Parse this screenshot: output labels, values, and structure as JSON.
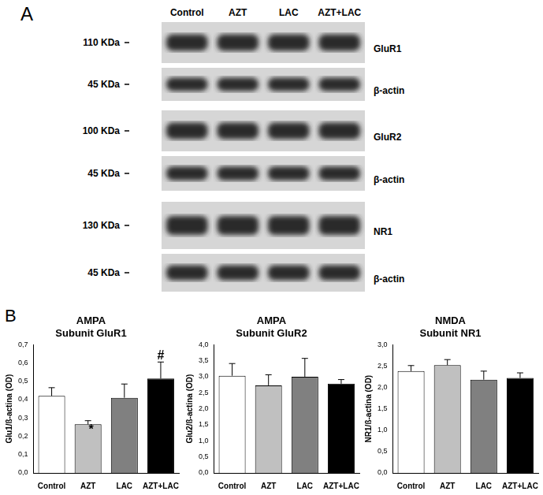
{
  "panel_a": {
    "label": "A",
    "lanes": [
      "Control",
      "AZT",
      "LAC",
      "AZT+LAC"
    ],
    "blots": [
      {
        "mw": "110 KDa",
        "protein": "GluR1"
      },
      {
        "mw": "45 KDa",
        "protein": "β-actin"
      },
      {
        "mw": "100 KDa",
        "protein": "GluR2"
      },
      {
        "mw": "45 KDa",
        "protein": "β-actin"
      },
      {
        "mw": "130 KDa",
        "protein": "NR1"
      },
      {
        "mw": "45 KDa",
        "protein": "β-actin"
      }
    ]
  },
  "panel_b_label": "B",
  "chart_data": [
    {
      "type": "bar",
      "title": [
        "AMPA",
        "Subunit GluR1"
      ],
      "y_label": "Glu1/ß-actina (OD)",
      "categories": [
        "Control",
        "AZT",
        "LAC",
        "AZT+LAC"
      ],
      "values": [
        0.42,
        0.265,
        0.41,
        0.515
      ],
      "errors": [
        0.045,
        0.02,
        0.075,
        0.09
      ],
      "colors": [
        "#ffffff",
        "#c0c0c0",
        "#808080",
        "#000000"
      ],
      "annotations": [
        {
          "category": "AZT",
          "text": "*"
        },
        {
          "category": "AZT+LAC",
          "text": "#"
        }
      ],
      "ylim": [
        0,
        0.7
      ],
      "yticks": [
        {
          "value": 0,
          "label": "0,0"
        },
        {
          "value": 0.1,
          "label": "0,1"
        },
        {
          "value": 0.2,
          "label": "0,2"
        },
        {
          "value": 0.3,
          "label": "0,3"
        },
        {
          "value": 0.4,
          "label": "0,4"
        },
        {
          "value": 0.5,
          "label": "0,5"
        },
        {
          "value": 0.6,
          "label": "0,6"
        },
        {
          "value": 0.7,
          "label": "0,7"
        }
      ],
      "grid": false
    },
    {
      "type": "bar",
      "title": [
        "AMPA",
        "Subunit GluR2"
      ],
      "y_label": "Glu2/ß-actina (OD)",
      "categories": [
        "Control",
        "AZT",
        "LAC",
        "AZT+LAC"
      ],
      "values": [
        3.03,
        2.73,
        3.0,
        2.78
      ],
      "errors": [
        0.38,
        0.33,
        0.57,
        0.13
      ],
      "colors": [
        "#ffffff",
        "#c0c0c0",
        "#808080",
        "#000000"
      ],
      "ylim": [
        0,
        4
      ],
      "yticks": [
        {
          "value": 0,
          "label": "0,0"
        },
        {
          "value": 0.5,
          "label": "0,5"
        },
        {
          "value": 1,
          "label": "1,0"
        },
        {
          "value": 1.5,
          "label": "1,5"
        },
        {
          "value": 2,
          "label": "2,0"
        },
        {
          "value": 2.5,
          "label": "2,5"
        },
        {
          "value": 3,
          "label": "3,0"
        },
        {
          "value": 3.5,
          "label": "3,5"
        },
        {
          "value": 4,
          "label": "4,0"
        }
      ],
      "grid": false
    },
    {
      "type": "bar",
      "title": [
        "NMDA",
        "Subunit NR1"
      ],
      "y_label": "NR1/ß-actina (OD)",
      "categories": [
        "Control",
        "AZT",
        "LAC",
        "AZT+LAC"
      ],
      "values": [
        2.38,
        2.52,
        2.18,
        2.22
      ],
      "errors": [
        0.13,
        0.13,
        0.2,
        0.12
      ],
      "colors": [
        "#ffffff",
        "#c0c0c0",
        "#808080",
        "#000000"
      ],
      "ylim": [
        0,
        3
      ],
      "yticks": [
        {
          "value": 0,
          "label": "0,0"
        },
        {
          "value": 0.5,
          "label": "0,5"
        },
        {
          "value": 1,
          "label": "1,0"
        },
        {
          "value": 1.5,
          "label": "1,5"
        },
        {
          "value": 2,
          "label": "2,0"
        },
        {
          "value": 2.5,
          "label": "2,5"
        },
        {
          "value": 3,
          "label": "3,0"
        }
      ],
      "grid": false
    }
  ]
}
